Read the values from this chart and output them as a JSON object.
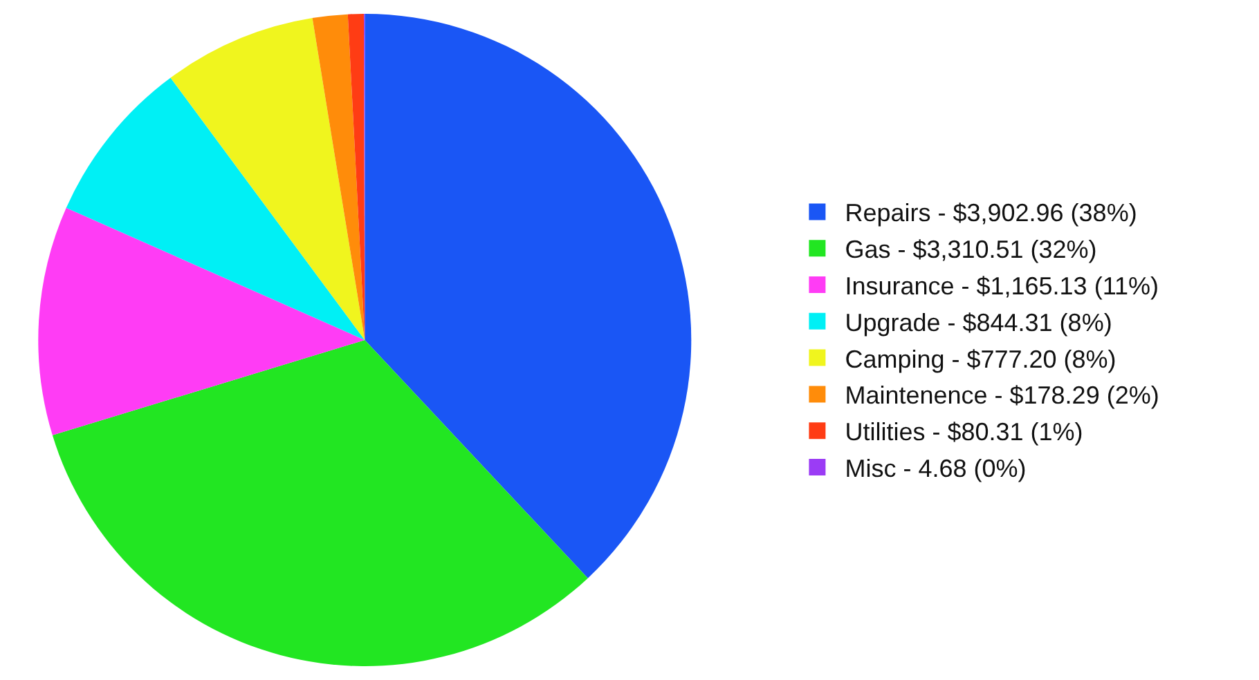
{
  "chart_data": {
    "type": "pie",
    "categories": [
      "Repairs",
      "Gas",
      "Insurance",
      "Upgrade",
      "Camping",
      "Maintenence",
      "Utilities",
      "Misc"
    ],
    "values": [
      3902.96,
      3310.51,
      1165.13,
      844.31,
      777.2,
      178.29,
      80.31,
      4.68
    ],
    "value_labels": [
      "$3,902.96 (38%)",
      "$3,310.51 (32%)",
      "$1,165.13 (11%)",
      "$844.31 (8%)",
      "$777.20 (8%)",
      "$178.29 (2%)",
      "$80.31 (1%)",
      "4.68 (0%)"
    ],
    "colors": [
      "#1a56f5",
      "#22e622",
      "#ff3cf5",
      "#00f0f5",
      "#f0f51e",
      "#ff8c0a",
      "#ff3c14",
      "#9b3cf5"
    ],
    "legend": "right"
  }
}
